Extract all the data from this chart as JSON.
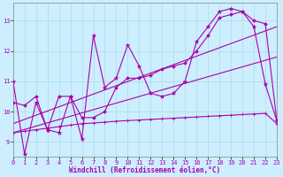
{
  "xlabel": "Windchill (Refroidissement éolien,°C)",
  "bg_color": "#cceeff",
  "grid_color": "#aadddd",
  "line_color": "#aa00aa",
  "xmin": 0,
  "xmax": 23,
  "ymin": 8.5,
  "ymax": 13.6,
  "yticks": [
    9,
    10,
    11,
    12,
    13
  ],
  "xticks": [
    0,
    1,
    2,
    3,
    4,
    5,
    6,
    7,
    8,
    9,
    10,
    11,
    12,
    13,
    14,
    15,
    16,
    17,
    18,
    19,
    20,
    21,
    22,
    23
  ],
  "series1_y": [
    11.0,
    8.6,
    10.3,
    9.4,
    9.3,
    10.5,
    9.1,
    12.5,
    10.8,
    11.1,
    12.2,
    11.5,
    10.6,
    10.5,
    10.6,
    11.0,
    12.3,
    12.8,
    13.3,
    13.4,
    13.3,
    12.8,
    10.9,
    9.7
  ],
  "series2_y": [
    10.3,
    10.2,
    10.5,
    9.4,
    10.5,
    10.5,
    9.8,
    9.8,
    10.0,
    10.8,
    11.1,
    11.1,
    11.2,
    11.4,
    11.5,
    11.6,
    12.0,
    12.5,
    13.1,
    13.2,
    13.3,
    13.0,
    12.9,
    9.7
  ],
  "series3_y": [
    9.3,
    9.35,
    9.4,
    9.45,
    9.5,
    9.55,
    9.6,
    9.62,
    9.65,
    9.68,
    9.7,
    9.72,
    9.74,
    9.76,
    9.78,
    9.8,
    9.82,
    9.84,
    9.86,
    9.88,
    9.9,
    9.92,
    9.94,
    9.6
  ],
  "reg1_y_start": 9.3,
  "reg1_y_end": 11.8,
  "reg2_y_start": 9.6,
  "reg2_y_end": 12.8
}
